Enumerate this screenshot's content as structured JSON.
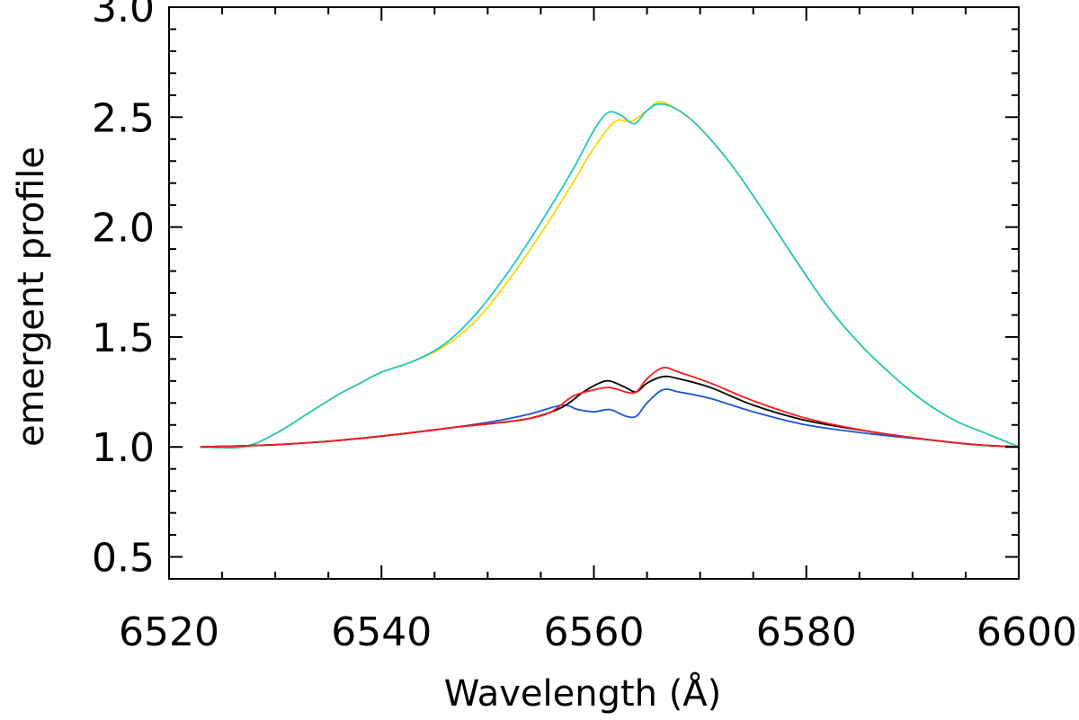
{
  "chart_data": {
    "type": "line",
    "title": "",
    "xlabel": "Wavelength (Å)",
    "ylabel": "emergent profile",
    "xlim": [
      6520,
      6600
    ],
    "ylim": [
      0.4,
      3.0
    ],
    "x_ticks": [
      6520,
      6540,
      6560,
      6580,
      6600
    ],
    "x_tick_labels": [
      "6520",
      "6540",
      "6560",
      "6580",
      "6600"
    ],
    "y_ticks": [
      0.5,
      1.0,
      1.5,
      2.0,
      2.5,
      3.0
    ],
    "y_tick_labels": [
      "0.5",
      "1.0",
      "1.5",
      "2.0",
      "2.5",
      "3.0"
    ],
    "grid": false,
    "series": [
      {
        "color": "#ffd700",
        "points": [
          [
            6523,
            1.0
          ],
          [
            6527,
            1.0
          ],
          [
            6530,
            1.06
          ],
          [
            6533,
            1.15
          ],
          [
            6536,
            1.24
          ],
          [
            6538,
            1.29
          ],
          [
            6540,
            1.34
          ],
          [
            6543,
            1.39
          ],
          [
            6546,
            1.46
          ],
          [
            6549,
            1.58
          ],
          [
            6552,
            1.76
          ],
          [
            6555,
            1.97
          ],
          [
            6558,
            2.2
          ],
          [
            6560,
            2.36
          ],
          [
            6562,
            2.48
          ],
          [
            6563.5,
            2.48
          ],
          [
            6565,
            2.53
          ],
          [
            6566.2,
            2.57
          ],
          [
            6568,
            2.53
          ],
          [
            6570,
            2.45
          ],
          [
            6573,
            2.28
          ],
          [
            6576,
            2.07
          ],
          [
            6579,
            1.85
          ],
          [
            6582,
            1.64
          ],
          [
            6585,
            1.47
          ],
          [
            6588,
            1.33
          ],
          [
            6591,
            1.21
          ],
          [
            6594,
            1.12
          ],
          [
            6597,
            1.06
          ],
          [
            6600,
            1.0
          ]
        ]
      },
      {
        "color": "#20c8c0",
        "points": [
          [
            6523,
            1.0
          ],
          [
            6527,
            1.0
          ],
          [
            6530,
            1.06
          ],
          [
            6533,
            1.15
          ],
          [
            6536,
            1.24
          ],
          [
            6538,
            1.29
          ],
          [
            6540,
            1.34
          ],
          [
            6543,
            1.39
          ],
          [
            6546,
            1.47
          ],
          [
            6549,
            1.61
          ],
          [
            6552,
            1.8
          ],
          [
            6555,
            2.02
          ],
          [
            6558,
            2.26
          ],
          [
            6560,
            2.44
          ],
          [
            6561.3,
            2.52
          ],
          [
            6562.5,
            2.51
          ],
          [
            6563.8,
            2.47
          ],
          [
            6565,
            2.53
          ],
          [
            6566.2,
            2.56
          ],
          [
            6568,
            2.53
          ],
          [
            6570,
            2.45
          ],
          [
            6573,
            2.28
          ],
          [
            6576,
            2.07
          ],
          [
            6579,
            1.85
          ],
          [
            6582,
            1.64
          ],
          [
            6585,
            1.47
          ],
          [
            6588,
            1.33
          ],
          [
            6591,
            1.21
          ],
          [
            6594,
            1.12
          ],
          [
            6597,
            1.06
          ],
          [
            6600,
            1.0
          ]
        ]
      },
      {
        "color": "#1a55d6",
        "points": [
          [
            6523,
            1.0
          ],
          [
            6530,
            1.01
          ],
          [
            6536,
            1.03
          ],
          [
            6542,
            1.06
          ],
          [
            6547,
            1.09
          ],
          [
            6551,
            1.12
          ],
          [
            6554,
            1.15
          ],
          [
            6557,
            1.19
          ],
          [
            6558.5,
            1.17
          ],
          [
            6560,
            1.16
          ],
          [
            6561.5,
            1.17
          ],
          [
            6563,
            1.14
          ],
          [
            6564,
            1.14
          ],
          [
            6565,
            1.2
          ],
          [
            6566.5,
            1.26
          ],
          [
            6568,
            1.25
          ],
          [
            6571,
            1.22
          ],
          [
            6575,
            1.16
          ],
          [
            6580,
            1.1
          ],
          [
            6586,
            1.06
          ],
          [
            6592,
            1.03
          ],
          [
            6596,
            1.01
          ],
          [
            6600,
            1.0
          ]
        ]
      },
      {
        "color": "#000000",
        "points": [
          [
            6523,
            1.0
          ],
          [
            6530,
            1.01
          ],
          [
            6536,
            1.03
          ],
          [
            6542,
            1.06
          ],
          [
            6547,
            1.09
          ],
          [
            6551,
            1.11
          ],
          [
            6554,
            1.13
          ],
          [
            6557,
            1.18
          ],
          [
            6559,
            1.25
          ],
          [
            6560.5,
            1.29
          ],
          [
            6561.5,
            1.3
          ],
          [
            6563,
            1.27
          ],
          [
            6564,
            1.25
          ],
          [
            6565,
            1.29
          ],
          [
            6566.5,
            1.32
          ],
          [
            6568,
            1.31
          ],
          [
            6571,
            1.27
          ],
          [
            6575,
            1.19
          ],
          [
            6580,
            1.12
          ],
          [
            6586,
            1.07
          ],
          [
            6592,
            1.03
          ],
          [
            6596,
            1.01
          ],
          [
            6600,
            1.0
          ]
        ]
      },
      {
        "color": "#ff1a1a",
        "points": [
          [
            6523,
            1.0
          ],
          [
            6530,
            1.01
          ],
          [
            6536,
            1.03
          ],
          [
            6542,
            1.06
          ],
          [
            6547,
            1.09
          ],
          [
            6551,
            1.11
          ],
          [
            6554,
            1.13
          ],
          [
            6556,
            1.16
          ],
          [
            6558,
            1.23
          ],
          [
            6560,
            1.26
          ],
          [
            6561.5,
            1.27
          ],
          [
            6563,
            1.25
          ],
          [
            6564,
            1.25
          ],
          [
            6565,
            1.31
          ],
          [
            6566.5,
            1.36
          ],
          [
            6568,
            1.34
          ],
          [
            6571,
            1.29
          ],
          [
            6575,
            1.21
          ],
          [
            6580,
            1.13
          ],
          [
            6586,
            1.07
          ],
          [
            6592,
            1.03
          ],
          [
            6596,
            1.01
          ],
          [
            6600,
            1.0
          ]
        ]
      }
    ]
  }
}
